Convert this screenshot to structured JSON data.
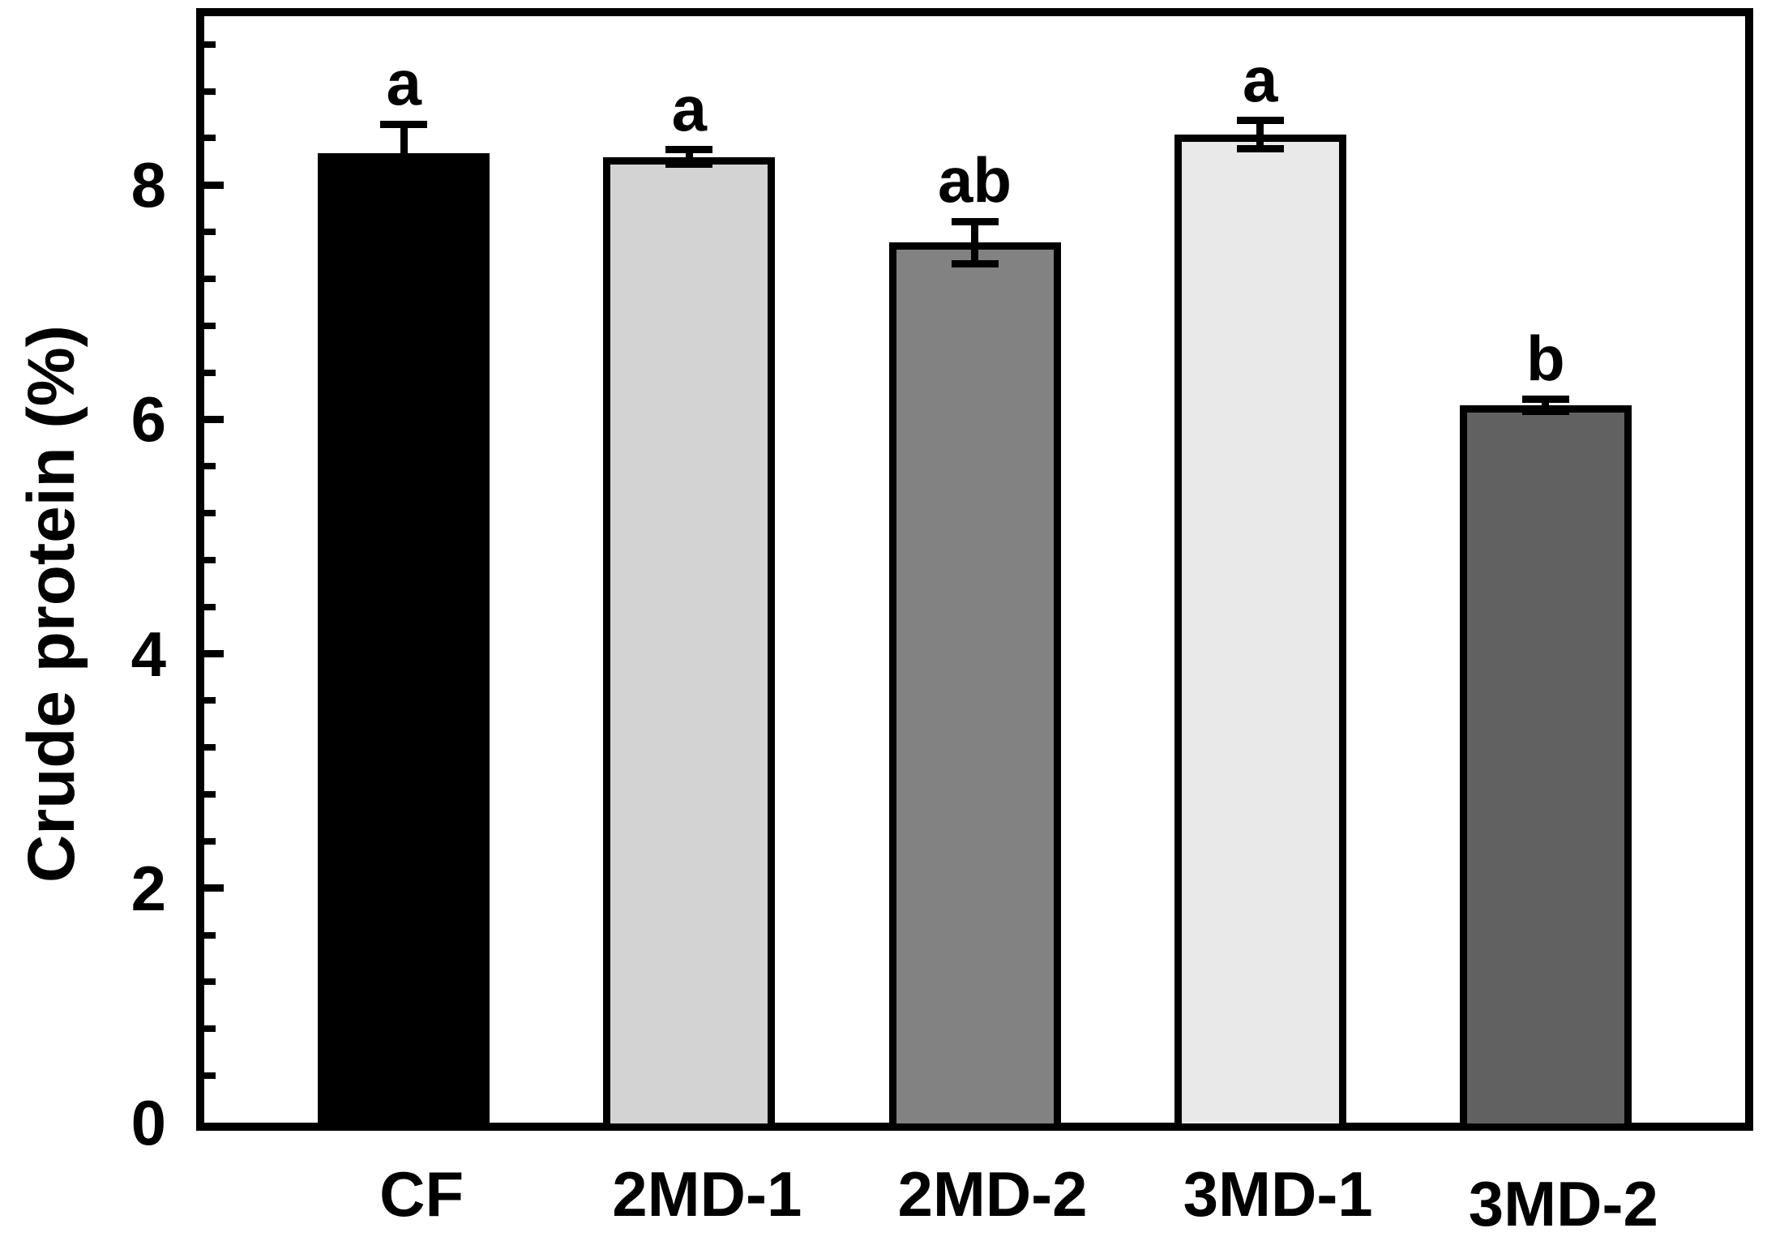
{
  "chart_data": {
    "type": "bar",
    "title": "",
    "xlabel": "",
    "ylabel": "Crude protein (%)",
    "categories": [
      "CF",
      "2MD-1",
      "2MD-2",
      "3MD-1",
      "3MD-2"
    ],
    "values": [
      8.27,
      8.24,
      7.51,
      8.43,
      6.12
    ],
    "error_bars": [
      0.25,
      0.06,
      0.18,
      0.12,
      0.05
    ],
    "significance_letters": [
      "a",
      "a",
      "ab",
      "a",
      "b"
    ],
    "bar_fill_colors": [
      "#000000",
      "#d3d3d3",
      "#828282",
      "#e9e9e9",
      "#616161"
    ],
    "bar_outline_color": "#000000",
    "axis_color": "#000000",
    "text_color": "#000000",
    "background_color": "#ffffff",
    "ylim": [
      0,
      9.44
    ],
    "y_major_ticks": [
      0,
      2,
      4,
      6,
      8
    ],
    "y_minor_step": 0.4,
    "grid": false,
    "legend": null,
    "frame_box": true,
    "tick_direction": "in",
    "error_bar_style": "plus-minus-caps"
  }
}
